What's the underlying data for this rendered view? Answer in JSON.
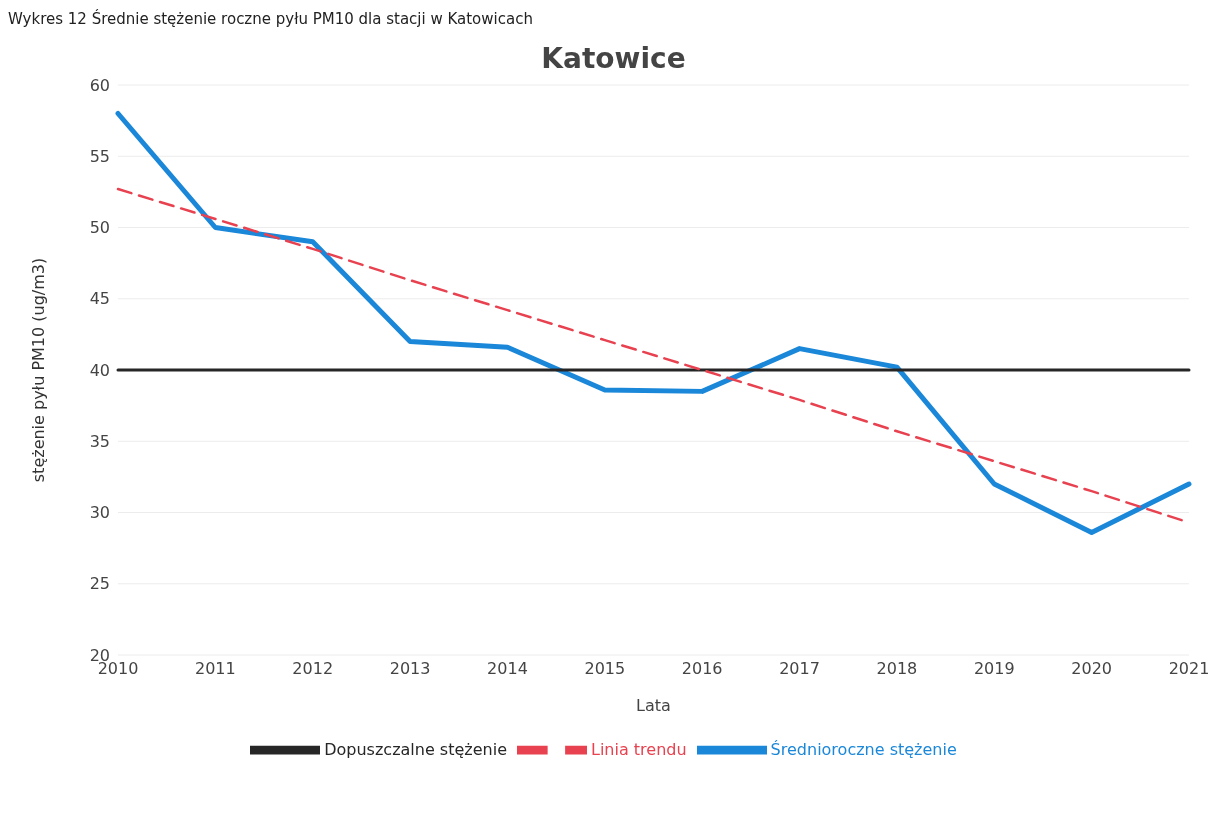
{
  "chart_data": {
    "type": "line",
    "title": "Katowice",
    "annotations": [
      "Wykres 12 Średnie stężenie roczne pyłu PM10 dla stacji w Katowicach"
    ],
    "xlabel": "Lata",
    "ylabel": "stężenie pyłu PM10 (ug/m3)",
    "categories": [
      "2010",
      "2011",
      "2012",
      "2013",
      "2014",
      "2015",
      "2016",
      "2017",
      "2018",
      "2019",
      "2020",
      "2021"
    ],
    "series": [
      {
        "name": "Średnioroczne stężenie",
        "color": "#1a87d9",
        "values": [
          58.0,
          50.0,
          49.0,
          42.0,
          41.6,
          38.6,
          38.5,
          41.5,
          40.2,
          32.0,
          28.6,
          32.0
        ]
      },
      {
        "name": "Dopuszczalne stężenie",
        "color": "#262626",
        "values": [
          40,
          40,
          40,
          40,
          40,
          40,
          40,
          40,
          40,
          40,
          40,
          40
        ]
      },
      {
        "name": "Linia trendu",
        "color": "#e8414f",
        "line_style": "dashed",
        "values": [
          52.7,
          50.6,
          48.5,
          46.3,
          44.2,
          42.1,
          40.0,
          37.9,
          35.7,
          33.6,
          31.5,
          29.3
        ]
      }
    ],
    "ylim": [
      20,
      60
    ],
    "yticks": [
      20,
      25,
      30,
      35,
      40,
      45,
      50,
      55,
      60
    ],
    "grid": "y",
    "legend": "bottom"
  }
}
